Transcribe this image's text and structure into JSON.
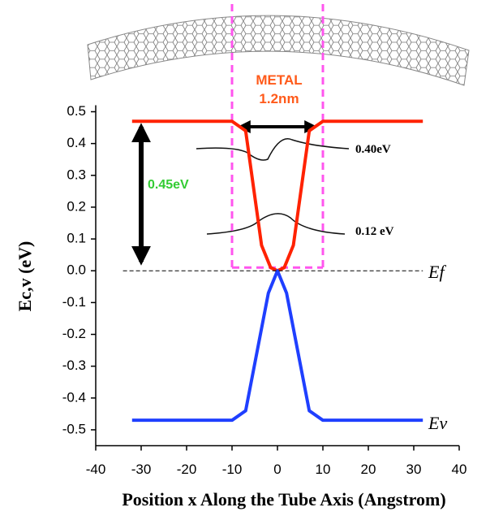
{
  "chart_data": {
    "type": "line",
    "xlabel": "Position x Along the Tube Axis (Angstrom)",
    "ylabel": "Ec,v (eV)",
    "xlim": [
      -40,
      40
    ],
    "xticks": [
      -40,
      -30,
      -20,
      -10,
      0,
      10,
      20,
      30,
      40
    ],
    "ylim": [
      -0.55,
      0.5
    ],
    "yticks": [
      0.5,
      0.4,
      0.3,
      0.2,
      0.1,
      {
        "value": 0,
        "label": "0.0"
      },
      -0.1,
      -0.2,
      -0.3,
      -0.4,
      -0.5
    ],
    "series": [
      {
        "color": "#ff2200",
        "x": [
          -32,
          -10,
          -7,
          -3.5,
          -1.5,
          0,
          1.5,
          3.5,
          7,
          10,
          32
        ],
        "values": [
          0.47,
          0.47,
          0.44,
          0.08,
          0.01,
          0,
          0.01,
          0.08,
          0.44,
          0.47,
          0.47
        ]
      },
      {
        "color": "#1f3fff",
        "x": [
          -32,
          -10,
          -7,
          -2,
          0,
          2,
          7,
          10,
          32
        ],
        "values": [
          -0.47,
          -0.47,
          -0.44,
          -0.07,
          0,
          -0.07,
          -0.44,
          -0.47,
          -0.47
        ]
      },
      {
        "color": "#000000",
        "dashed": true,
        "x": [
          -34,
          32
        ],
        "values": [
          0,
          0
        ]
      }
    ],
    "region": {
      "x": [
        -10,
        10
      ],
      "y_bottom": 0.01,
      "color": "#ff55ee"
    },
    "annotations": {
      "metal": "METAL",
      "width": "1.2nm",
      "gap": "0.45eV",
      "level1": "0.40eV",
      "level2": "0.12 eV",
      "ef": "Ef",
      "ev": "Ev"
    }
  }
}
